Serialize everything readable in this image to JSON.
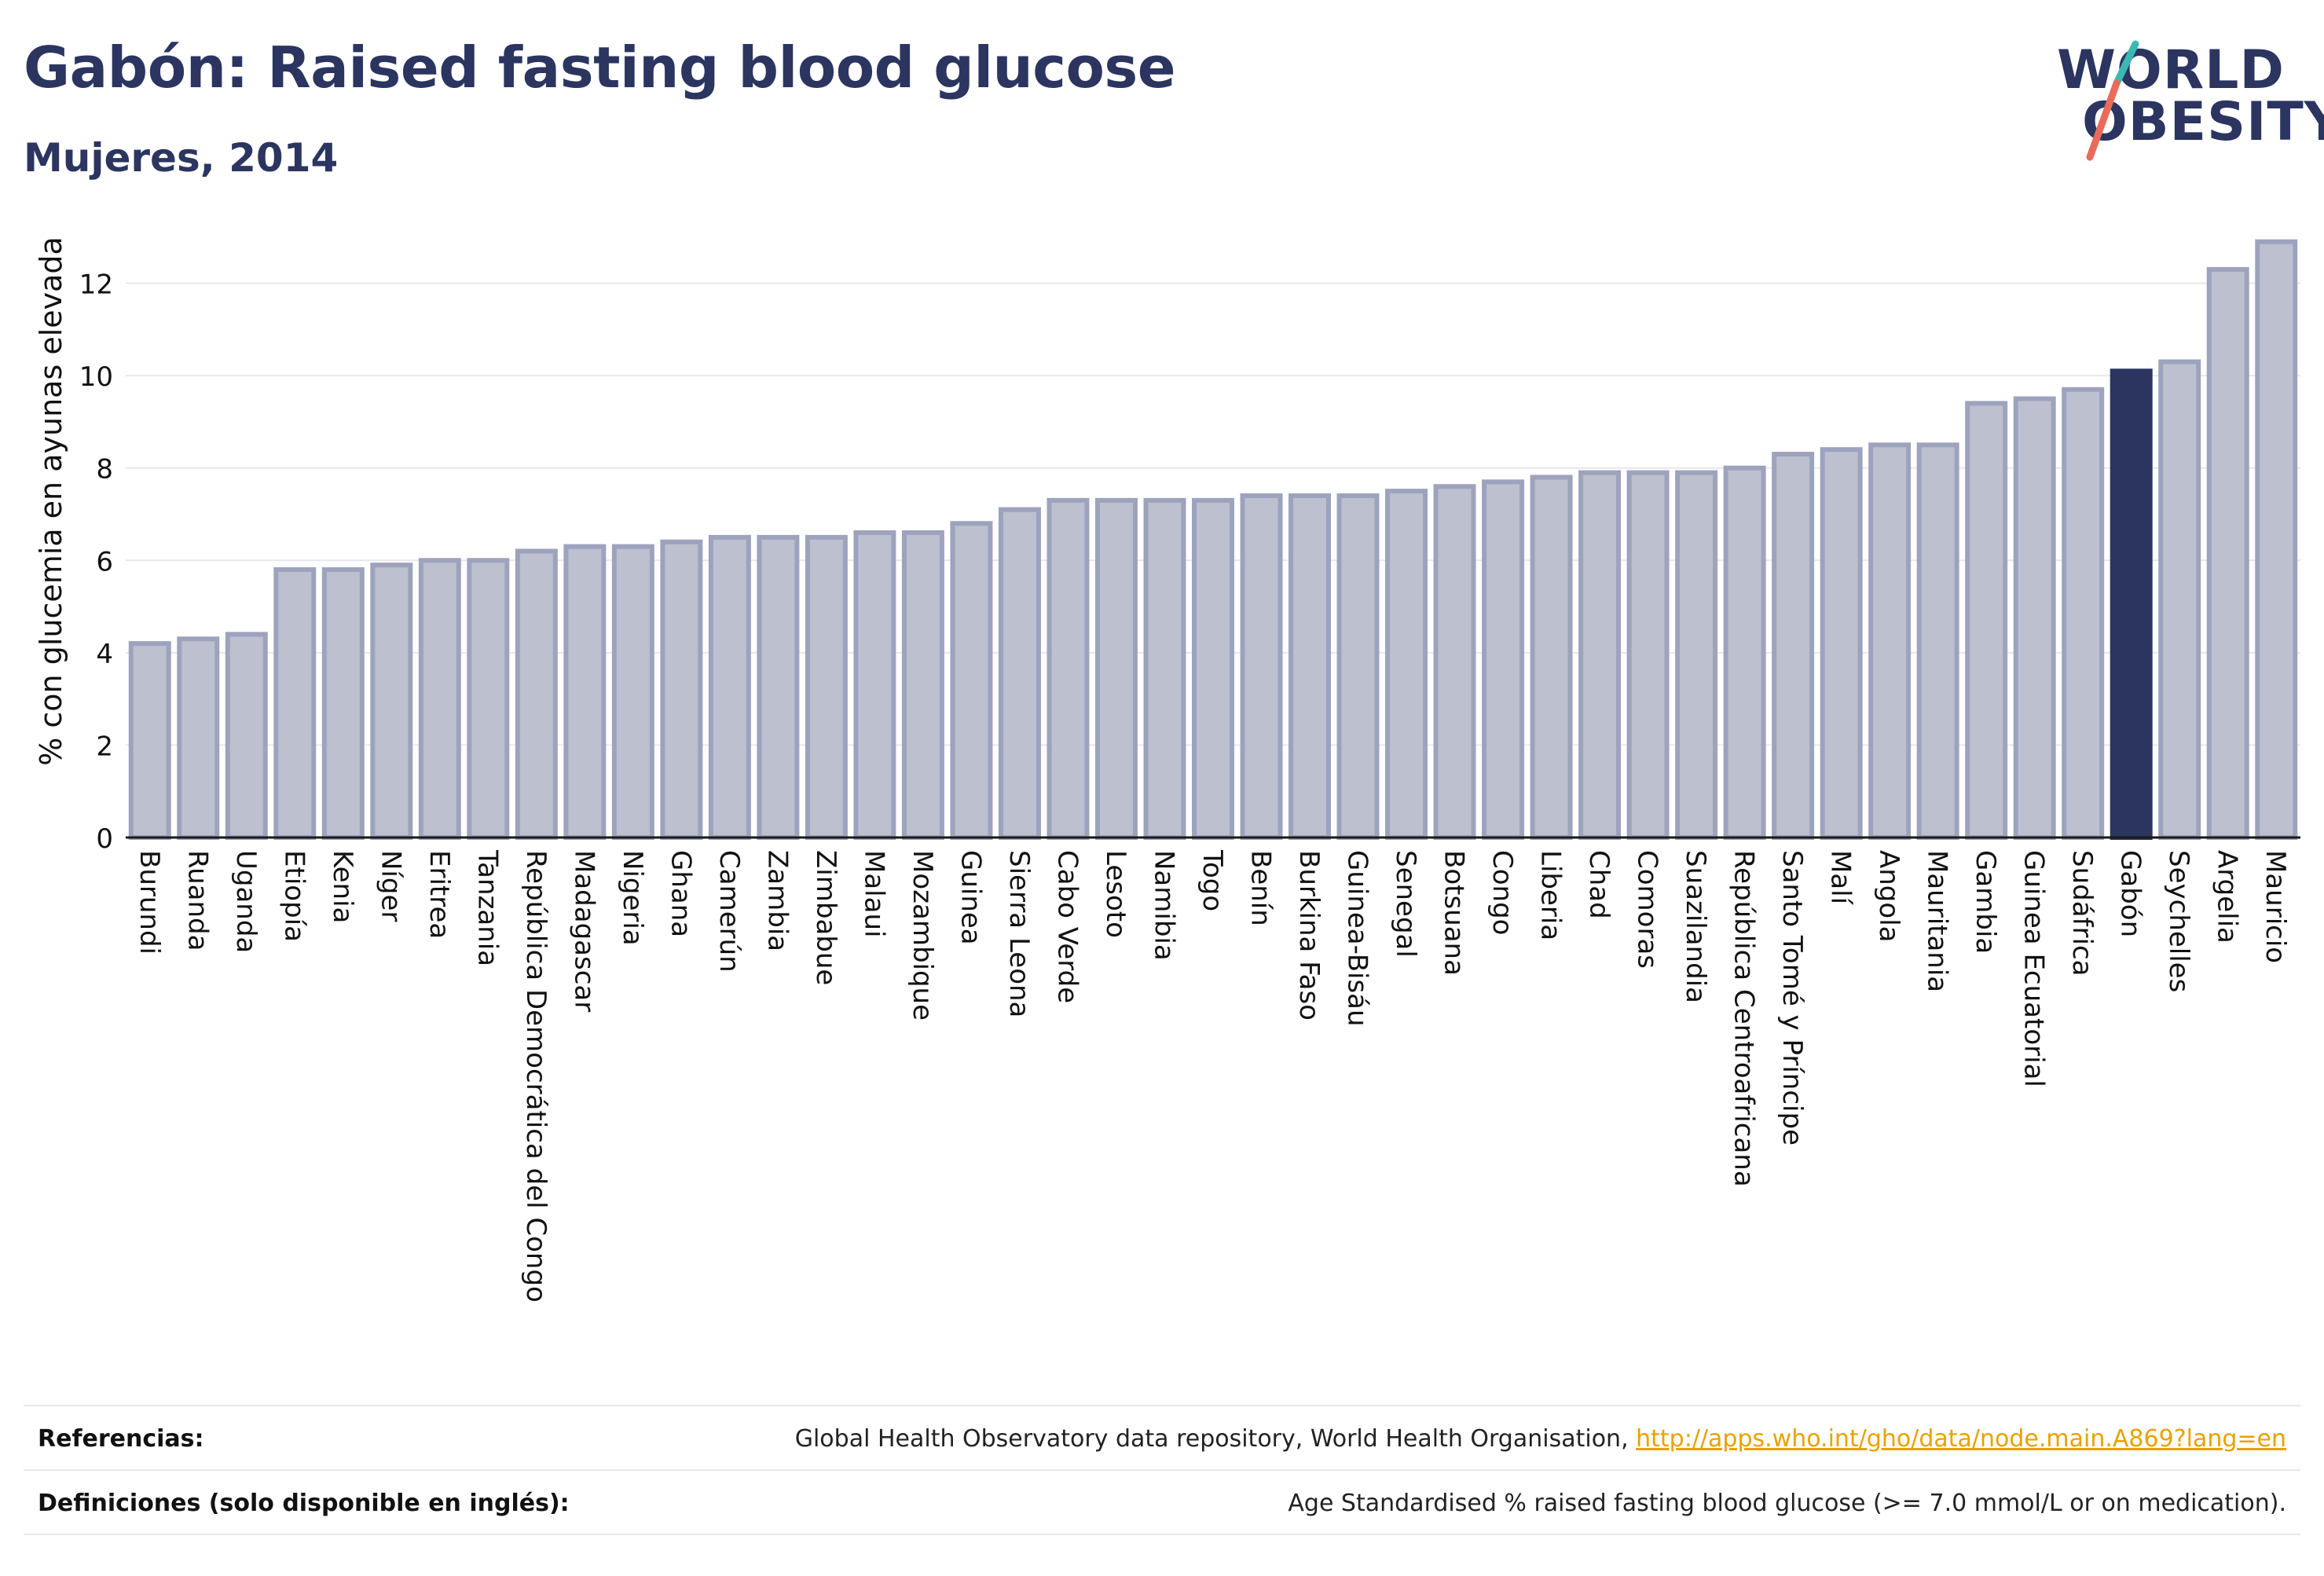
{
  "header": {
    "title": "Gabón: Raised fasting blood glucose",
    "subtitle": "Mujeres, 2014"
  },
  "logo": {
    "line1": "WORLD",
    "line2": "OBESITY"
  },
  "colors": {
    "highlight": "#2b3560",
    "bar_fill": "#bcc0cf",
    "bar_stroke": "#9da3bd",
    "grid": "#e6e8ee",
    "logo_teal": "#3bb8b4",
    "logo_coral": "#ea6b5b",
    "link": "#e8a200"
  },
  "chart_data": {
    "type": "bar",
    "title": "Gabón: Raised fasting blood glucose",
    "subtitle": "Mujeres, 2014",
    "ylabel": "% con glucemia en ayunas elevada",
    "xlabel": "",
    "ylim": [
      0,
      13.2
    ],
    "yticks": [
      0,
      2,
      4,
      6,
      8,
      10,
      12
    ],
    "grid": true,
    "highlight": "Gabón",
    "categories": [
      "Burundi",
      "Ruanda",
      "Uganda",
      "Etiopía",
      "Kenia",
      "Níger",
      "Eritrea",
      "Tanzania",
      "República Democrática del Congo",
      "Madagascar",
      "Nigeria",
      "Ghana",
      "Camerún",
      "Zambia",
      "Zimbabue",
      "Malaui",
      "Mozambique",
      "Guinea",
      "Sierra Leona",
      "Cabo Verde",
      "Lesoto",
      "Namibia",
      "Togo",
      "Benín",
      "Burkina Faso",
      "Guinea-Bisáu",
      "Senegal",
      "Botsuana",
      "Congo",
      "Liberia",
      "Chad",
      "Comoras",
      "Suazilandia",
      "República Centroafricana",
      "Santo Tomé y Príncipe",
      "Malí",
      "Angola",
      "Mauritania",
      "Gambia",
      "Guinea Ecuatorial",
      "Sudáfrica",
      "Gabón",
      "Seychelles",
      "Argelia",
      "Mauricio"
    ],
    "values": [
      4.2,
      4.3,
      4.4,
      5.8,
      5.8,
      5.9,
      6.0,
      6.0,
      6.2,
      6.3,
      6.3,
      6.4,
      6.5,
      6.5,
      6.5,
      6.6,
      6.6,
      6.8,
      7.1,
      7.3,
      7.3,
      7.3,
      7.3,
      7.4,
      7.4,
      7.4,
      7.5,
      7.6,
      7.7,
      7.8,
      7.9,
      7.9,
      7.9,
      8.0,
      8.3,
      8.4,
      8.5,
      8.5,
      9.4,
      9.5,
      9.7,
      10.1,
      10.3,
      12.3,
      12.9
    ]
  },
  "footer": {
    "references_label": "Referencias:",
    "references_text": "Global Health Observatory data repository, World Health Organisation, ",
    "references_link": "http://apps.who.int/gho/data/node.main.A869?lang=en",
    "definitions_label": "Definiciones (solo disponible en inglés):",
    "definitions_text": "Age Standardised % raised fasting blood glucose (>= 7.0 mmol/L or on medication)."
  }
}
